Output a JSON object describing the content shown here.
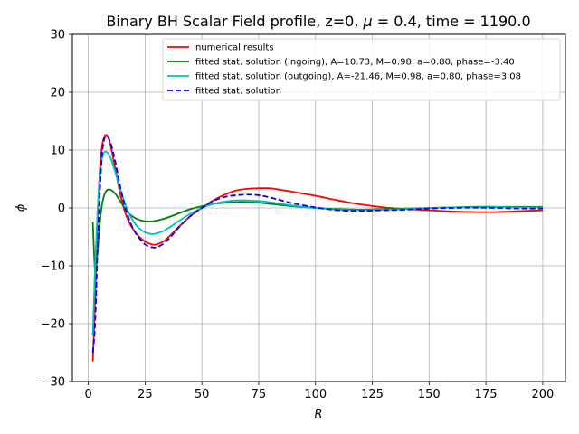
{
  "chart_data": {
    "type": "line",
    "title_parts": [
      "Binary BH Scalar Field profile, z=0, ",
      "μ",
      " = 0.4, time = 1190.0"
    ],
    "xlabel": "R",
    "ylabel": "ϕ",
    "xlim": [
      -7,
      210
    ],
    "ylim": [
      -30,
      30
    ],
    "xticks": [
      0,
      25,
      50,
      75,
      100,
      125,
      150,
      175,
      200
    ],
    "yticks": [
      -30,
      -20,
      -10,
      0,
      10,
      20,
      30
    ],
    "xtick_labels": [
      "0",
      "25",
      "50",
      "75",
      "100",
      "125",
      "150",
      "175",
      "200"
    ],
    "ytick_labels": [
      "−30",
      "−20",
      "−10",
      "0",
      "10",
      "20",
      "30"
    ],
    "grid": true,
    "legend_position": "upper right",
    "series": [
      {
        "name": "numerical results",
        "color": "#ff0000",
        "dash": "solid",
        "x": [
          2,
          3,
          4,
          5,
          6,
          7,
          8,
          9,
          10,
          12,
          14,
          16,
          18,
          20,
          22,
          25,
          28,
          30,
          33,
          36,
          40,
          45,
          50,
          55,
          60,
          65,
          70,
          75,
          80,
          85,
          90,
          100,
          110,
          120,
          130,
          140,
          150,
          160,
          170,
          175,
          180,
          190,
          200
        ],
        "y": [
          -26.5,
          -16,
          -3,
          6,
          10.5,
          12.3,
          12.6,
          12,
          10.5,
          6.5,
          2.5,
          -0.5,
          -2.5,
          -3.8,
          -4.8,
          -5.8,
          -6.3,
          -6.3,
          -5.8,
          -4.8,
          -3.2,
          -1.4,
          0,
          1.3,
          2.3,
          3,
          3.3,
          3.4,
          3.4,
          3.1,
          2.8,
          2.1,
          1.3,
          0.6,
          0.1,
          -0.2,
          -0.4,
          -0.6,
          -0.7,
          -0.72,
          -0.7,
          -0.55,
          -0.4
        ]
      },
      {
        "name": "fitted stat. solution (ingoing), A=10.73, M=0.98, a=0.80, phase=-3.40",
        "color": "#008000",
        "dash": "solid",
        "x": [
          2,
          3,
          4,
          5,
          6,
          7,
          8,
          9,
          10,
          12,
          14,
          16,
          18,
          20,
          22,
          25,
          28,
          30,
          33,
          36,
          40,
          45,
          50,
          55,
          60,
          65,
          70,
          75,
          80,
          85,
          90,
          100,
          110,
          120,
          130,
          140,
          150,
          160,
          170,
          180,
          190,
          200
        ],
        "y": [
          -2.5,
          -11,
          -8,
          -3,
          0.5,
          2.2,
          3,
          3.2,
          3.1,
          2.4,
          1.2,
          0,
          -1,
          -1.6,
          -2,
          -2.3,
          -2.3,
          -2.2,
          -1.9,
          -1.5,
          -0.9,
          -0.2,
          0.3,
          0.7,
          0.9,
          1,
          1,
          0.9,
          0.7,
          0.5,
          0.3,
          0,
          -0.2,
          -0.3,
          -0.2,
          -0.1,
          0,
          0.1,
          0.2,
          0.2,
          0.2,
          0.2
        ]
      },
      {
        "name": "fitted stat. solution (outgoing), A=-21.46, M=0.98, a=0.80, phase=3.08",
        "color": "#00bfbf",
        "dash": "solid",
        "x": [
          2,
          3,
          4,
          5,
          6,
          7,
          8,
          9,
          10,
          12,
          14,
          16,
          18,
          20,
          22,
          25,
          28,
          30,
          33,
          36,
          40,
          45,
          50,
          55,
          60,
          65,
          70,
          75,
          80,
          85,
          90,
          100,
          110,
          120,
          130,
          140,
          150,
          160,
          170,
          180,
          190,
          200
        ],
        "y": [
          -22,
          -10,
          -1,
          5,
          8.5,
          9.6,
          9.7,
          9.3,
          8.5,
          6,
          3.3,
          0.9,
          -1,
          -2.4,
          -3.4,
          -4.2,
          -4.5,
          -4.4,
          -4,
          -3.3,
          -2.2,
          -1,
          0,
          0.7,
          1.1,
          1.3,
          1.3,
          1.2,
          1,
          0.7,
          0.4,
          0,
          -0.3,
          -0.4,
          -0.3,
          -0.2,
          0,
          0.1,
          0.15,
          0.15,
          0.1,
          0.1
        ]
      },
      {
        "name": "fitted stat. solution",
        "color": "#0000ff",
        "dash": "dashed",
        "x": [
          2,
          3,
          4,
          5,
          6,
          7,
          8,
          9,
          10,
          12,
          14,
          16,
          18,
          20,
          22,
          25,
          28,
          30,
          33,
          36,
          40,
          45,
          50,
          55,
          60,
          65,
          70,
          75,
          80,
          85,
          90,
          100,
          110,
          120,
          130,
          140,
          150,
          160,
          170,
          180,
          190,
          200
        ],
        "y": [
          -25,
          -20,
          -8,
          2,
          9,
          11.8,
          12.5,
          12,
          11,
          7.8,
          3.8,
          0.5,
          -2,
          -3.8,
          -5,
          -6.3,
          -6.8,
          -6.8,
          -6.2,
          -5.1,
          -3.3,
          -1.4,
          0,
          1.2,
          1.9,
          2.2,
          2.3,
          2.2,
          1.8,
          1.3,
          0.8,
          0.1,
          -0.4,
          -0.5,
          -0.4,
          -0.3,
          -0.1,
          0,
          0.05,
          0,
          -0.1,
          -0.1
        ]
      }
    ]
  }
}
